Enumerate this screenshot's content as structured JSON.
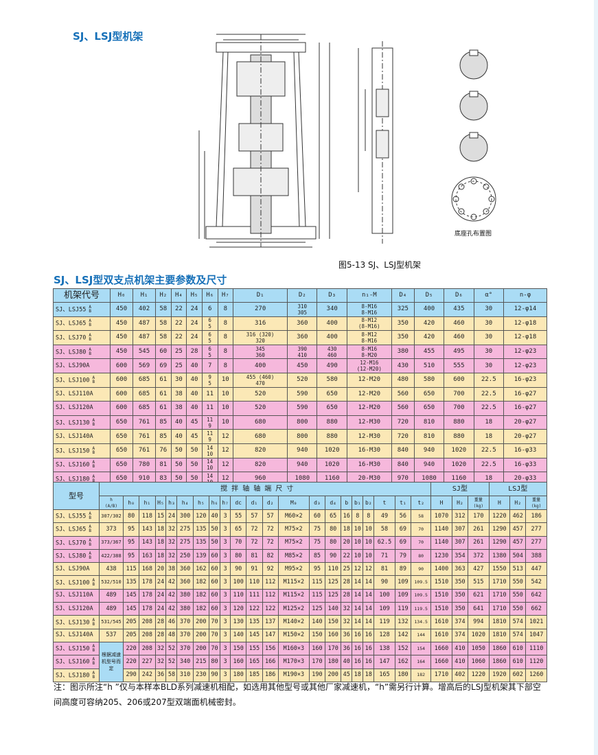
{
  "title": "SJ、LSJ型机架",
  "figure_caption": "图5-13   SJ、LSJ型机架",
  "hole_layout_caption": "底座孔布置图",
  "table1": {
    "title": "SJ、LSJ型双支点机架主要参数及尺寸",
    "headers": [
      "机架代号",
      "H₀",
      "H₁",
      "H₂",
      "H₄",
      "H₅",
      "H₆",
      "H₇",
      "D₁",
      "D₂",
      "D₃",
      "n₁-M",
      "D₄",
      "D₅",
      "D₆",
      "α°",
      "n-φ"
    ],
    "rows": [
      {
        "model": "SJ、LSJ55",
        "ab": true,
        "color": "blue",
        "cells": [
          "450",
          "402",
          "58",
          "22",
          "24",
          "6",
          "8",
          "270",
          "310\n305",
          "340",
          "8-M16\n8-M16",
          "325",
          "400",
          "435",
          "30",
          "12-φ14"
        ]
      },
      {
        "model": "SJ、LSJ65",
        "ab": true,
        "color": "yellow",
        "cells": [
          "450",
          "487",
          "58",
          "22",
          "24",
          "6\n5",
          "8",
          "316",
          "360",
          "400",
          "8-M12\n(8-M16)",
          "350",
          "420",
          "460",
          "30",
          "12-φ18"
        ]
      },
      {
        "model": "SJ、LSJ70",
        "ab": true,
        "color": "yellow",
        "cells": [
          "450",
          "487",
          "58",
          "22",
          "24",
          "6\n5",
          "8",
          "316 (320)\n320",
          "360",
          "400",
          "8-M12\n8-M16",
          "350",
          "420",
          "460",
          "30",
          "12-φ18"
        ]
      },
      {
        "model": "SJ、LSJ80",
        "ab": true,
        "color": "pink",
        "cells": [
          "450",
          "545",
          "60",
          "25",
          "28",
          "6\n5",
          "8",
          "345\n360",
          "390\n410",
          "430\n460",
          "8-M16\n8-M20",
          "380",
          "455",
          "495",
          "30",
          "12-φ23"
        ]
      },
      {
        "model": "SJ、LSJ90A",
        "ab": false,
        "color": "pink",
        "cells": [
          "600",
          "569",
          "69",
          "25",
          "40",
          "7",
          "8",
          "400",
          "450",
          "490",
          "12-M16\n(12-M20)",
          "430",
          "510",
          "555",
          "30",
          "12-φ23"
        ]
      },
      {
        "model": "SJ、LSJ100",
        "ab": true,
        "color": "yellow",
        "cells": [
          "600",
          "685",
          "61",
          "30",
          "40",
          "9\n5",
          "10",
          "455 (460)\n470",
          "520",
          "580",
          "12-M20",
          "480",
          "580",
          "600",
          "22.5",
          "16-φ23"
        ]
      },
      {
        "model": "SJ、LSJ110A",
        "ab": false,
        "color": "yellow",
        "cells": [
          "600",
          "685",
          "61",
          "38",
          "40",
          "11",
          "10",
          "520",
          "590",
          "650",
          "12-M20",
          "560",
          "650",
          "700",
          "22.5",
          "16-φ27"
        ]
      },
      {
        "model": "SJ、LSJ120A",
        "ab": false,
        "color": "pink",
        "cells": [
          "600",
          "685",
          "61",
          "38",
          "40",
          "11",
          "10",
          "520",
          "590",
          "650",
          "12-M20",
          "560",
          "650",
          "700",
          "22.5",
          "16-φ27"
        ]
      },
      {
        "model": "SJ、LSJ130",
        "ab": true,
        "color": "pink",
        "cells": [
          "650",
          "761",
          "85",
          "40",
          "45",
          "11\n9",
          "10",
          "680",
          "800",
          "880",
          "12-M30",
          "720",
          "810",
          "880",
          "18",
          "20-φ27"
        ]
      },
      {
        "model": "SJ、LSJ140A",
        "ab": false,
        "color": "yellow",
        "cells": [
          "650",
          "761",
          "85",
          "40",
          "45",
          "11\n9",
          "12",
          "680",
          "800",
          "880",
          "12-M30",
          "720",
          "810",
          "880",
          "18",
          "20-φ27"
        ]
      },
      {
        "model": "SJ、LSJ150",
        "ab": true,
        "color": "yellow",
        "cells": [
          "650",
          "761",
          "76",
          "50",
          "50",
          "14\n10",
          "12",
          "820",
          "940",
          "1020",
          "16-M30",
          "840",
          "940",
          "1020",
          "22.5",
          "16-φ33"
        ]
      },
      {
        "model": "SJ、LSJ160",
        "ab": true,
        "color": "pink",
        "cells": [
          "650",
          "780",
          "81",
          "50",
          "50",
          "14\n10",
          "12",
          "820",
          "940",
          "1020",
          "16-M30",
          "840",
          "940",
          "1020",
          "22.5",
          "16-φ33"
        ]
      },
      {
        "model": "SJ、LSJ180",
        "ab": true,
        "color": "pink",
        "cells": [
          "650",
          "910",
          "83",
          "50",
          "50",
          "14\n10",
          "12",
          "960",
          "1080",
          "1160",
          "20-M30",
          "970",
          "1080",
          "1160",
          "18",
          "20-φ33"
        ]
      }
    ]
  },
  "table2": {
    "model_header": "型号",
    "group_header": "搅 拌 轴 轴 端 尺 寸",
    "sj_header": "SJ型",
    "lsj_header": "LSJ型",
    "headers": [
      "h\n(A/B)",
      "h₀",
      "h₁",
      "H₅",
      "h₃",
      "h₄",
      "h₅",
      "h₆",
      "h₇",
      "dc",
      "d₁",
      "d₂",
      "M₀",
      "d₃",
      "d₄",
      "b",
      "b₁",
      "b₂",
      "t",
      "t₁",
      "t₂",
      "H",
      "H₂",
      "重量\n(kg)",
      "H",
      "H₂",
      "重量\n(kg)"
    ],
    "merged_note": "根据减速机型号而定",
    "rows": [
      {
        "model": "SJ、LSJ55",
        "ab": true,
        "color": "yellow",
        "cells": [
          "307/302",
          "80",
          "118",
          "15",
          "24",
          "300",
          "120",
          "40",
          "3",
          "55",
          "57",
          "57",
          "M60×2",
          "60",
          "65",
          "16",
          "8",
          "8",
          "49",
          "56",
          "58",
          "1070",
          "312",
          "170",
          "1220",
          "462",
          "186"
        ]
      },
      {
        "model": "SJ、LSJ65",
        "ab": true,
        "color": "yellow",
        "cells": [
          "373",
          "95",
          "143",
          "18",
          "32",
          "275",
          "135",
          "50",
          "3",
          "65",
          "72",
          "72",
          "M75×2",
          "75",
          "80",
          "18",
          "10",
          "10",
          "58",
          "69",
          "70",
          "1140",
          "307",
          "261",
          "1290",
          "457",
          "277"
        ]
      },
      {
        "model": "SJ、LSJ70",
        "ab": true,
        "color": "pink",
        "cells": [
          "373/367",
          "95",
          "143",
          "18",
          "32",
          "275",
          "135",
          "50",
          "3",
          "70",
          "72",
          "72",
          "M75×2",
          "75",
          "80",
          "20",
          "10",
          "10",
          "62.5",
          "69",
          "70",
          "1140",
          "307",
          "261",
          "1290",
          "457",
          "277"
        ]
      },
      {
        "model": "SJ、LSJ80",
        "ab": true,
        "color": "pink",
        "cells": [
          "422/388",
          "95",
          "163",
          "18",
          "32",
          "250",
          "139",
          "60",
          "3",
          "80",
          "81",
          "82",
          "M85×2",
          "85",
          "90",
          "22",
          "10",
          "10",
          "71",
          "79",
          "80",
          "1230",
          "354",
          "372",
          "1380",
          "504",
          "388"
        ]
      },
      {
        "model": "SJ、LSJ90A",
        "ab": false,
        "color": "yellow",
        "cells": [
          "438",
          "115",
          "168",
          "20",
          "38",
          "360",
          "162",
          "60",
          "3",
          "90",
          "91",
          "92",
          "M95×2",
          "95",
          "110",
          "25",
          "12",
          "12",
          "81",
          "89",
          "90",
          "1400",
          "363",
          "427",
          "1550",
          "513",
          "447"
        ]
      },
      {
        "model": "SJ、LSJ100",
        "ab": true,
        "color": "yellow",
        "cells": [
          "532/510",
          "135",
          "178",
          "24",
          "42",
          "360",
          "182",
          "60",
          "3",
          "100",
          "110",
          "112",
          "M115×2",
          "115",
          "125",
          "28",
          "14",
          "14",
          "90",
          "109",
          "109.5",
          "1510",
          "350",
          "515",
          "1710",
          "550",
          "542"
        ]
      },
      {
        "model": "SJ、LSJ110A",
        "ab": false,
        "color": "pink",
        "cells": [
          "489",
          "145",
          "178",
          "24",
          "42",
          "380",
          "182",
          "60",
          "3",
          "110",
          "111",
          "112",
          "M115×2",
          "115",
          "125",
          "28",
          "14",
          "14",
          "100",
          "109",
          "109.5",
          "1510",
          "350",
          "621",
          "1710",
          "550",
          "642"
        ]
      },
      {
        "model": "SJ、LSJ120A",
        "ab": false,
        "color": "pink",
        "cells": [
          "489",
          "145",
          "178",
          "24",
          "42",
          "380",
          "182",
          "60",
          "3",
          "120",
          "122",
          "122",
          "M125×2",
          "125",
          "140",
          "32",
          "14",
          "14",
          "109",
          "119",
          "119.5",
          "1510",
          "350",
          "641",
          "1710",
          "550",
          "662"
        ]
      },
      {
        "model": "SJ、LSJ130",
        "ab": true,
        "color": "yellow",
        "cells": [
          "531/545",
          "205",
          "208",
          "28",
          "46",
          "370",
          "200",
          "70",
          "3",
          "130",
          "135",
          "137",
          "M140×2",
          "140",
          "150",
          "32",
          "14",
          "14",
          "119",
          "132",
          "134.5",
          "1610",
          "374",
          "994",
          "1810",
          "574",
          "1021"
        ]
      },
      {
        "model": "SJ、LSJ140A",
        "ab": false,
        "color": "yellow",
        "cells": [
          "537",
          "205",
          "208",
          "28",
          "48",
          "370",
          "200",
          "70",
          "3",
          "140",
          "145",
          "147",
          "M150×2",
          "150",
          "160",
          "36",
          "16",
          "16",
          "128",
          "142",
          "144",
          "1610",
          "374",
          "1020",
          "1810",
          "574",
          "1047"
        ]
      },
      {
        "model": "SJ、LSJ150",
        "ab": true,
        "color": "pink",
        "cells": [
          null,
          "220",
          "208",
          "32",
          "52",
          "370",
          "200",
          "70",
          "3",
          "150",
          "155",
          "156",
          "M160×3",
          "160",
          "170",
          "36",
          "16",
          "16",
          "138",
          "152",
          "154",
          "1660",
          "410",
          "1050",
          "1860",
          "610",
          "1110"
        ]
      },
      {
        "model": "SJ、LSJ160",
        "ab": true,
        "color": "pink",
        "cells": [
          null,
          "220",
          "227",
          "32",
          "52",
          "340",
          "215",
          "80",
          "3",
          "160",
          "165",
          "166",
          "M170×3",
          "170",
          "180",
          "40",
          "16",
          "16",
          "147",
          "162",
          "164",
          "1660",
          "410",
          "1060",
          "1860",
          "610",
          "1120"
        ]
      },
      {
        "model": "SJ、LSJ180",
        "ab": true,
        "color": "yellow",
        "cells": [
          null,
          "290",
          "242",
          "36",
          "58",
          "310",
          "230",
          "90",
          "3",
          "180",
          "185",
          "186",
          "M190×3",
          "190",
          "200",
          "45",
          "18",
          "18",
          "165",
          "180",
          "182",
          "1710",
          "402",
          "1220",
          "1920",
          "602",
          "1260"
        ]
      }
    ]
  },
  "note": "注：图示所注“h ”仅与本样本BLD系列减速机相配，如选用其他型号或其他厂家减速机，“h”需另行计算。增高后的LSJ型机架其下部空间高度可容纳205、206或207型双端面机械密封。",
  "colors": {
    "accent": "#1670b8",
    "blue": "#aadcf5",
    "yellow": "#fbe8b6",
    "pink": "#f6b8dc"
  }
}
